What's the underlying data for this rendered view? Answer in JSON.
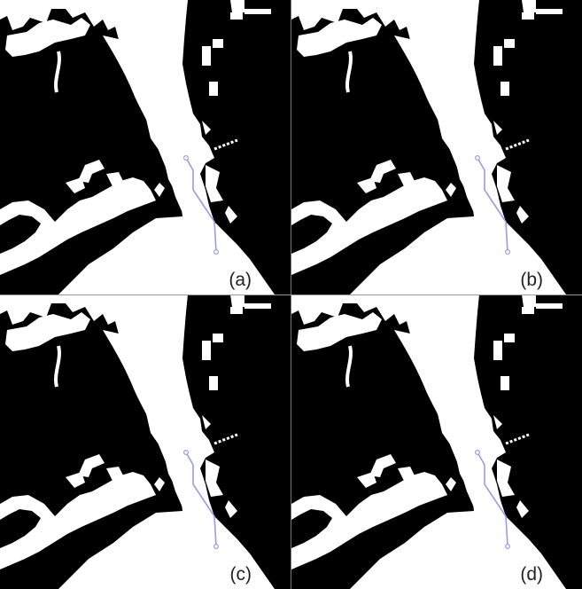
{
  "panels": [
    {
      "id": "a",
      "label": "(a)"
    },
    {
      "id": "b",
      "label": "(b)"
    },
    {
      "id": "c",
      "label": "(c)"
    },
    {
      "id": "d",
      "label": "(d)"
    }
  ],
  "colors": {
    "land": "#000000",
    "water": "#ffffff",
    "route": "#9a9ae8",
    "divider": "#777777"
  }
}
